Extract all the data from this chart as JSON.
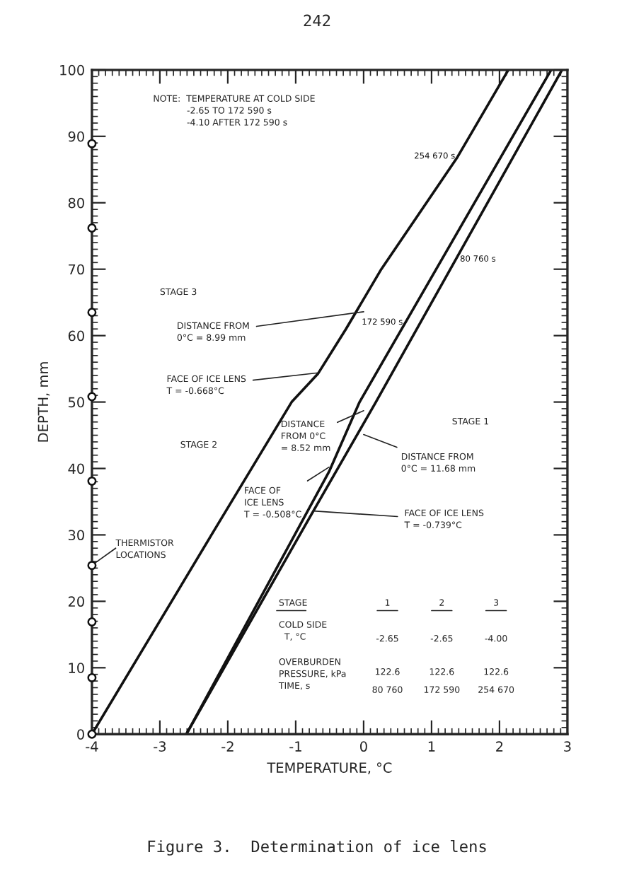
{
  "chart_data": {
    "type": "line",
    "xlabel": "TEMPERATURE, °C",
    "ylabel": "DEPTH, mm",
    "xlim": [
      -4,
      3
    ],
    "ylim": [
      0,
      100
    ],
    "xticks": [
      -4,
      -3,
      -2,
      -1,
      0,
      1,
      2,
      3
    ],
    "yticks": [
      0,
      10,
      20,
      30,
      40,
      50,
      60,
      70,
      80,
      90,
      100
    ],
    "grid": false,
    "legend": false,
    "line_style": "solid",
    "series": [
      {
        "name": "254 670 s",
        "color": "#111111",
        "x": [
          -4,
          -2.24,
          -1.06,
          -0.67,
          -0.26,
          0.26,
          1.37,
          2.13
        ],
        "values": [
          0,
          30,
          50,
          54.3,
          61,
          70,
          86.7,
          100
        ]
      },
      {
        "name": "80 760 s",
        "color": "#111111",
        "x": [
          -2.61,
          -0.74,
          0.18,
          2.92
        ],
        "values": [
          0,
          33.6,
          50,
          100
        ]
      },
      {
        "name": "172 590 s",
        "color": "#111111",
        "x": [
          -2.61,
          -0.51,
          -0.06,
          2.76
        ],
        "values": [
          0,
          39.5,
          50,
          100
        ]
      },
      {
        "type": "scatter",
        "marker": "circle",
        "color": "#111111",
        "x": [
          -4,
          -4,
          -4,
          -4,
          -4,
          -4,
          -4,
          -4,
          -4
        ],
        "values": [
          0,
          8.5,
          16.9,
          25.4,
          38.1,
          50.8,
          63.5,
          76.2,
          88.9
        ]
      }
    ],
    "annotations": [
      "242",
      "NOTE:  TEMPERATURE AT COLD SIDE\n            -2.65 TO 172 590 s\n            -4.10 AFTER 172 590 s",
      "STAGE 3",
      {
        "text": "DISTANCE FROM\n0°C = 8.99 mm",
        "x": 0,
        "y": 63.6
      },
      {
        "text": "FACE OF ICE LENS\nT = -0.668°C",
        "x": -0.67,
        "y": 54.4
      },
      "STAGE 2",
      {
        "text": "DISTANCE\nFROM 0°C\n= 8.52 mm",
        "x": 0,
        "y": 48.7
      },
      {
        "text": "FACE OF\nICE LENS\nT = -0.508°C",
        "x": -0.51,
        "y": 40.2
      },
      "STAGE 1",
      {
        "text": "DISTANCE FROM\n0°C = 11.68 mm",
        "x": 0,
        "y": 45.1
      },
      {
        "text": "FACE OF ICE LENS\nT = -0.739°C",
        "x": -0.74,
        "y": 33.6
      },
      "THERMISTOR\nLOCATIONS",
      "STAGE",
      "1",
      "2",
      "3",
      "COLD SIDE\n  T, °C",
      "-2.65",
      "-2.65",
      "-4.00",
      "OVERBURDEN\nPRESSURE, kPa\nTIME, s",
      "122.6",
      "122.6",
      "122.6",
      "80 760",
      "172 590",
      "254 670",
      "Figure 3.  Determination of ice lens"
    ]
  }
}
